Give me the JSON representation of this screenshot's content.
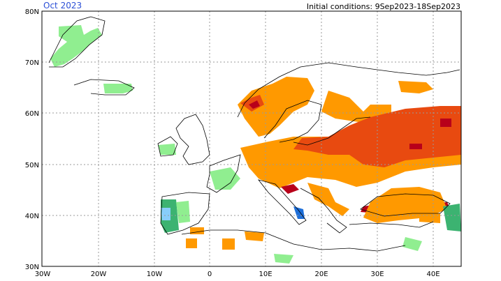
{
  "header": {
    "month_label": "Oct 2023",
    "initial_conditions": "Initial conditions: 9Sep2023-18Sep2023"
  },
  "axes": {
    "lat_labels": [
      "80N",
      "70N",
      "60N",
      "50N",
      "40N",
      "30N"
    ],
    "lon_labels": [
      "30W",
      "20W",
      "10W",
      "0",
      "10E",
      "20E",
      "30E",
      "40E"
    ]
  },
  "colors": {
    "frame": "#000000",
    "coast": "#000000",
    "grid": "#9a9a9a",
    "light_green": "#90ee90",
    "green": "#3cb371",
    "light_blue": "#87cefa",
    "blue": "#1e6fd9",
    "orange": "#ff9900",
    "red_orange": "#e84a10",
    "dark_red": "#b8001a"
  }
}
